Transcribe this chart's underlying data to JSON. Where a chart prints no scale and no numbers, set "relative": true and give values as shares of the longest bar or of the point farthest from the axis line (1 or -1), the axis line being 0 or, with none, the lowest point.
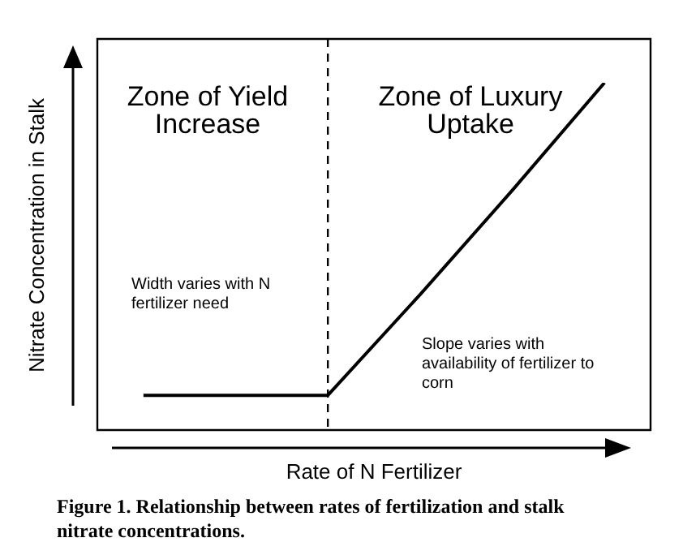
{
  "chart_data": {
    "type": "line",
    "title": "Figure 1. Relationship between rates of fertilization and stalk nitrate concentrations.",
    "xlabel": "Rate of N Fertilizer",
    "ylabel": "Nitrate Concentration in Stalk",
    "relative": true,
    "categories": [
      null,
      null,
      null,
      null,
      null,
      null
    ],
    "series": [
      {
        "color": "#000000",
        "values": [
          0.1,
          0.1,
          0.1,
          0.39,
          0.69,
          1
        ]
      }
    ],
    "annotations": [
      "Zone of Yield Increase",
      "Zone of Luxury Uptake",
      "Width varies with N fertilizer need",
      "Slope varies with availability of fertilizer to corn"
    ],
    "marker": "none",
    "line_style": "solid",
    "legend": false
  }
}
